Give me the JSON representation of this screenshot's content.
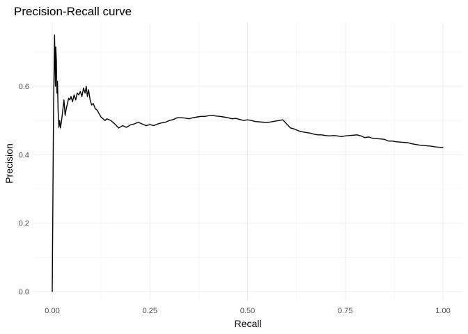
{
  "chart_data": {
    "type": "line",
    "title": "Precision-Recall curve",
    "xlabel": "Recall",
    "ylabel": "Precision",
    "xlim": [
      0,
      1
    ],
    "ylim": [
      0,
      0.75
    ],
    "x_ticks": [
      0.0,
      0.25,
      0.5,
      0.75,
      1.0
    ],
    "x_tick_labels": [
      "0.00",
      "0.25",
      "0.50",
      "0.75",
      "1.00"
    ],
    "y_ticks": [
      0.0,
      0.2,
      0.4,
      0.6
    ],
    "y_tick_labels": [
      "0.0",
      "0.2",
      "0.4",
      "0.6"
    ],
    "grid": true,
    "legend": "none",
    "line_color": "#000000",
    "series": [
      {
        "x": [
          0.0,
          0.0035,
          0.006,
          0.008,
          0.009,
          0.0105,
          0.012,
          0.0135,
          0.015,
          0.017,
          0.019,
          0.021,
          0.024,
          0.027,
          0.03,
          0.033,
          0.036,
          0.039,
          0.042,
          0.045,
          0.048,
          0.052,
          0.056,
          0.06,
          0.064,
          0.068,
          0.072,
          0.076,
          0.08,
          0.084,
          0.087,
          0.09,
          0.093,
          0.097,
          0.101,
          0.105,
          0.11,
          0.115,
          0.12,
          0.125,
          0.13,
          0.135,
          0.14,
          0.15,
          0.16,
          0.17,
          0.18,
          0.19,
          0.2,
          0.21,
          0.22,
          0.23,
          0.24,
          0.25,
          0.26,
          0.27,
          0.28,
          0.29,
          0.3,
          0.31,
          0.32,
          0.33,
          0.34,
          0.35,
          0.36,
          0.37,
          0.38,
          0.39,
          0.4,
          0.41,
          0.42,
          0.43,
          0.44,
          0.45,
          0.46,
          0.47,
          0.48,
          0.49,
          0.5,
          0.51,
          0.52,
          0.53,
          0.54,
          0.55,
          0.56,
          0.57,
          0.58,
          0.59,
          0.6,
          0.61,
          0.62,
          0.63,
          0.64,
          0.65,
          0.66,
          0.67,
          0.68,
          0.69,
          0.7,
          0.71,
          0.72,
          0.73,
          0.74,
          0.75,
          0.76,
          0.77,
          0.78,
          0.79,
          0.8,
          0.81,
          0.82,
          0.83,
          0.84,
          0.85,
          0.86,
          0.87,
          0.88,
          0.89,
          0.9,
          0.91,
          0.92,
          0.93,
          0.94,
          0.95,
          0.96,
          0.97,
          0.98,
          0.99,
          1.0
        ],
        "y": [
          0.0,
          0.55,
          0.75,
          0.6,
          0.715,
          0.68,
          0.58,
          0.615,
          0.53,
          0.48,
          0.5,
          0.478,
          0.5,
          0.53,
          0.56,
          0.515,
          0.535,
          0.55,
          0.565,
          0.56,
          0.57,
          0.555,
          0.575,
          0.56,
          0.58,
          0.575,
          0.585,
          0.57,
          0.595,
          0.58,
          0.6,
          0.57,
          0.59,
          0.56,
          0.545,
          0.55,
          0.535,
          0.53,
          0.52,
          0.51,
          0.505,
          0.5,
          0.505,
          0.5,
          0.49,
          0.478,
          0.485,
          0.48,
          0.487,
          0.49,
          0.495,
          0.49,
          0.485,
          0.488,
          0.485,
          0.49,
          0.493,
          0.495,
          0.5,
          0.503,
          0.508,
          0.508,
          0.507,
          0.505,
          0.508,
          0.51,
          0.512,
          0.512,
          0.514,
          0.515,
          0.513,
          0.512,
          0.51,
          0.508,
          0.505,
          0.506,
          0.503,
          0.5,
          0.502,
          0.5,
          0.497,
          0.496,
          0.495,
          0.494,
          0.496,
          0.498,
          0.5,
          0.502,
          0.49,
          0.478,
          0.475,
          0.47,
          0.467,
          0.465,
          0.463,
          0.46,
          0.458,
          0.458,
          0.456,
          0.455,
          0.456,
          0.455,
          0.453,
          0.455,
          0.456,
          0.457,
          0.458,
          0.455,
          0.45,
          0.452,
          0.448,
          0.447,
          0.446,
          0.445,
          0.44,
          0.44,
          0.438,
          0.437,
          0.436,
          0.435,
          0.432,
          0.43,
          0.428,
          0.427,
          0.426,
          0.425,
          0.423,
          0.422,
          0.421
        ]
      }
    ]
  }
}
